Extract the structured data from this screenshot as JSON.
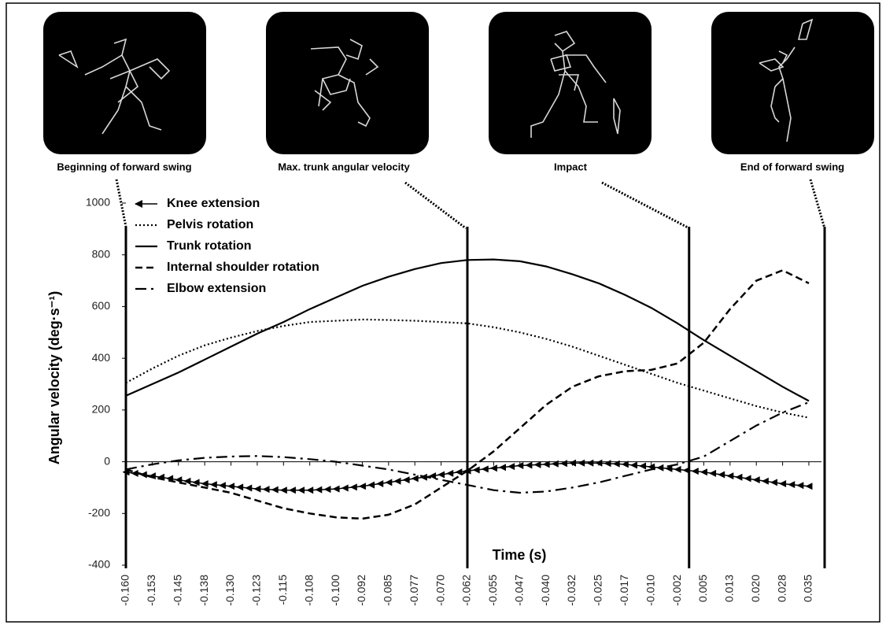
{
  "chart_data": {
    "type": "line",
    "ylabel": "Angular velocity (deg·s⁻¹)",
    "xlabel": "Time (s)",
    "x": [
      -0.16,
      -0.1525,
      -0.145,
      -0.1375,
      -0.13,
      -0.1225,
      -0.115,
      -0.1075,
      -0.1,
      -0.0925,
      -0.085,
      -0.0775,
      -0.07,
      -0.0625,
      -0.055,
      -0.0475,
      -0.04,
      -0.0325,
      -0.025,
      -0.0175,
      -0.01,
      -0.0025,
      0.005,
      0.0125,
      0.02,
      0.0275,
      0.035
    ],
    "xlim": [
      -0.16,
      0.0395
    ],
    "xticks": [
      {
        "value": -0.16,
        "label": "-0.160"
      },
      {
        "value": -0.1525,
        "label": "-0.153"
      },
      -0.145,
      {
        "value": -0.1375,
        "label": "-0.138"
      },
      {
        "value": -0.13,
        "label": "-0.130"
      },
      {
        "value": -0.1225,
        "label": "-0.123"
      },
      -0.115,
      {
        "value": -0.1075,
        "label": "-0.108"
      },
      {
        "value": -0.1,
        "label": "-0.100"
      },
      {
        "value": -0.0925,
        "label": "-0.092"
      },
      -0.085,
      {
        "value": -0.0775,
        "label": "-0.077"
      },
      {
        "value": -0.07,
        "label": "-0.070"
      },
      {
        "value": -0.0625,
        "label": "-0.062"
      },
      -0.055,
      {
        "value": -0.0475,
        "label": "-0.047"
      },
      {
        "value": -0.04,
        "label": "-0.040"
      },
      {
        "value": -0.0325,
        "label": "-0.032"
      },
      -0.025,
      {
        "value": -0.0175,
        "label": "-0.017"
      },
      {
        "value": -0.01,
        "label": "-0.010"
      },
      {
        "value": -0.0025,
        "label": "-0.002"
      },
      0.005,
      {
        "value": 0.0125,
        "label": "0.013"
      },
      {
        "value": 0.02,
        "label": "0.020"
      },
      {
        "value": 0.0275,
        "label": "0.028"
      },
      0.035
    ],
    "ylim": [
      -400,
      1000
    ],
    "yticks": [
      -400,
      -200,
      0,
      200,
      400,
      600,
      800,
      1000
    ],
    "legend": "upper left",
    "phases": [
      {
        "label": "Beginning of forward swing",
        "time": -0.16
      },
      {
        "label": "Max. trunk angular velocity",
        "time": -0.0625
      },
      {
        "label": "Impact",
        "time": 0.0008
      },
      {
        "label": "End of forward swing",
        "time": 0.0395
      }
    ],
    "series": [
      {
        "name": "Knee extension",
        "color": "#000000",
        "style": "triangles",
        "values": [
          -40,
          -55,
          -70,
          -85,
          -95,
          -105,
          -110,
          -110,
          -105,
          -95,
          -80,
          -65,
          -50,
          -35,
          -25,
          -15,
          -10,
          -5,
          -5,
          -10,
          -20,
          -30,
          -40,
          -55,
          -70,
          -85,
          -95
        ]
      },
      {
        "name": "Pelvis rotation",
        "color": "#000000",
        "style": "dotted",
        "values": [
          305,
          360,
          410,
          450,
          480,
          505,
          525,
          540,
          545,
          550,
          548,
          545,
          540,
          535,
          520,
          500,
          475,
          445,
          410,
          375,
          340,
          305,
          275,
          245,
          215,
          190,
          170
        ]
      },
      {
        "name": "Trunk rotation",
        "color": "#000000",
        "style": "solid",
        "values": [
          255,
          300,
          345,
          395,
          445,
          495,
          540,
          590,
          635,
          680,
          715,
          745,
          768,
          780,
          782,
          775,
          755,
          725,
          690,
          645,
          595,
          535,
          470,
          410,
          350,
          290,
          235
        ]
      },
      {
        "name": "Internal shoulder rotation",
        "color": "#000000",
        "style": "dashed",
        "values": [
          -30,
          -60,
          -80,
          -100,
          -120,
          -150,
          -180,
          -200,
          -215,
          -220,
          -205,
          -165,
          -100,
          -35,
          40,
          130,
          220,
          290,
          330,
          350,
          355,
          380,
          460,
          590,
          700,
          740,
          690
        ]
      },
      {
        "name": "Elbow extension",
        "color": "#000000",
        "style": "dashdot",
        "values": [
          -30,
          -10,
          5,
          15,
          20,
          22,
          18,
          10,
          0,
          -15,
          -30,
          -50,
          -70,
          -90,
          -110,
          -120,
          -115,
          -100,
          -80,
          -55,
          -30,
          -10,
          20,
          80,
          140,
          190,
          230
        ]
      }
    ]
  }
}
